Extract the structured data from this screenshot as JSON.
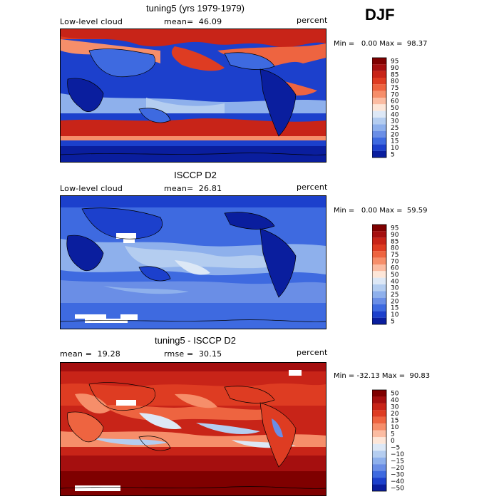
{
  "season": "DJF",
  "panels": [
    {
      "title": "tuning5 (yrs 1979-1979)",
      "left_label": "Low-level cloud",
      "mid_label": "mean=  46.09",
      "right_label": "percent",
      "minmax": "Min =   0.00 Max =  98.37",
      "colorbar_labels": [
        "95",
        "90",
        "85",
        "80",
        "75",
        "70",
        "60",
        "50",
        "40",
        "30",
        "25",
        "20",
        "15",
        "10",
        "5"
      ],
      "colorbar_colors": [
        "#7f0000",
        "#a50f0f",
        "#c82418",
        "#de3c22",
        "#ee6440",
        "#f68e6a",
        "#fbbca2",
        "#fde6d8",
        "#dde8f6",
        "#b4cdf0",
        "#8eb0ec",
        "#6a8ee6",
        "#3e6ae0",
        "#1c40cc",
        "#0a1e9e"
      ]
    },
    {
      "title": "ISCCP D2",
      "left_label": "Low-level cloud",
      "mid_label": "mean=  26.81",
      "right_label": "percent",
      "minmax": "Min =   0.00 Max =  59.59",
      "colorbar_labels": [
        "95",
        "90",
        "85",
        "80",
        "75",
        "70",
        "60",
        "50",
        "40",
        "30",
        "25",
        "20",
        "15",
        "10",
        "5"
      ],
      "colorbar_colors": [
        "#7f0000",
        "#a50f0f",
        "#c82418",
        "#de3c22",
        "#ee6440",
        "#f68e6a",
        "#fbbca2",
        "#fde6d8",
        "#dde8f6",
        "#b4cdf0",
        "#8eb0ec",
        "#6a8ee6",
        "#3e6ae0",
        "#1c40cc",
        "#0a1e9e"
      ]
    },
    {
      "title": "tuning5 - ISCCP D2",
      "left_label": "mean =  19.28",
      "mid_label": "rmse =  30.15",
      "right_label": "percent",
      "minmax": "Min = -32.13 Max =  90.83",
      "colorbar_labels": [
        "50",
        "40",
        "30",
        "20",
        "15",
        "10",
        "5",
        "0",
        "−5",
        "−10",
        "−15",
        "−20",
        "−30",
        "−40",
        "−50"
      ],
      "colorbar_colors": [
        "#7f0000",
        "#a50f0f",
        "#c82418",
        "#de3c22",
        "#ee6440",
        "#f68e6a",
        "#fbbca2",
        "#fde6d8",
        "#dde8f6",
        "#b4cdf0",
        "#8eb0ec",
        "#6a8ee6",
        "#3e6ae0",
        "#1c40cc",
        "#0a1e9e"
      ]
    }
  ],
  "chart_data": [
    {
      "type": "heatmap",
      "title": "tuning5 (yrs 1979-1979)",
      "variable": "Low-level cloud",
      "units": "percent",
      "mean": 46.09,
      "min": 0.0,
      "max": 98.37,
      "contour_levels": [
        5,
        10,
        15,
        20,
        25,
        30,
        40,
        50,
        60,
        70,
        75,
        80,
        85,
        90,
        95
      ]
    },
    {
      "type": "heatmap",
      "title": "ISCCP D2",
      "variable": "Low-level cloud",
      "units": "percent",
      "mean": 26.81,
      "min": 0.0,
      "max": 59.59,
      "contour_levels": [
        5,
        10,
        15,
        20,
        25,
        30,
        40,
        50,
        60,
        70,
        75,
        80,
        85,
        90,
        95
      ]
    },
    {
      "type": "heatmap",
      "title": "tuning5 - ISCCP D2",
      "units": "percent",
      "mean": 19.28,
      "rmse": 30.15,
      "min": -32.13,
      "max": 90.83,
      "contour_levels": [
        -50,
        -40,
        -30,
        -20,
        -15,
        -10,
        -5,
        0,
        5,
        10,
        15,
        20,
        30,
        40,
        50
      ]
    }
  ]
}
